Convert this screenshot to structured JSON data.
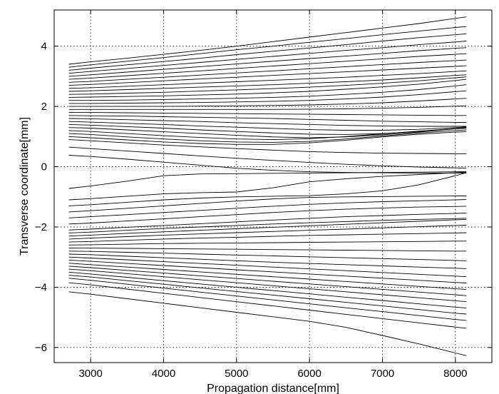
{
  "chart_data": {
    "type": "line",
    "title": "",
    "xlabel": "Propagation distance[mm]",
    "ylabel": "Transverse coordinate[mm]",
    "xlim": [
      2500,
      8500
    ],
    "ylim": [
      -6.5,
      5.2
    ],
    "xticks": [
      3000,
      4000,
      5000,
      6000,
      7000,
      8000
    ],
    "yticks": [
      -6,
      -4,
      -2,
      0,
      2,
      4
    ],
    "xtick_labels": [
      "3000",
      "4000",
      "5000",
      "6000",
      "7000",
      "8000"
    ],
    "ytick_labels": [
      "−6",
      "−4",
      "−2",
      "0",
      "2",
      "4"
    ],
    "grid": true,
    "legend": "none",
    "line_color": "#000000",
    "x": [
      2700,
      3000,
      3500,
      4000,
      4500,
      5000,
      5500,
      6000,
      6500,
      7000,
      7500,
      8000,
      8150
    ],
    "series": [
      {
        "values": [
          3.4,
          3.48,
          3.6,
          3.73,
          3.86,
          4.0,
          4.15,
          4.3,
          4.45,
          4.6,
          4.75,
          4.92,
          4.97
        ]
      },
      {
        "values": [
          3.3,
          3.38,
          3.5,
          3.62,
          3.75,
          3.88,
          4.0,
          4.13,
          4.25,
          4.38,
          4.5,
          4.62,
          4.65
        ]
      },
      {
        "values": [
          3.2,
          3.27,
          3.38,
          3.49,
          3.6,
          3.72,
          3.83,
          3.94,
          4.05,
          4.17,
          4.28,
          4.38,
          4.41
        ]
      },
      {
        "values": [
          3.1,
          3.16,
          3.26,
          3.36,
          3.46,
          3.56,
          3.66,
          3.76,
          3.86,
          3.95,
          4.05,
          4.14,
          4.17
        ]
      },
      {
        "values": [
          3.0,
          3.05,
          3.14,
          3.23,
          3.32,
          3.41,
          3.5,
          3.59,
          3.67,
          3.76,
          3.85,
          3.93,
          3.95
        ]
      },
      {
        "values": [
          2.9,
          2.94,
          3.02,
          3.1,
          3.18,
          3.26,
          3.34,
          3.42,
          3.5,
          3.58,
          3.66,
          3.73,
          3.75
        ]
      },
      {
        "values": [
          2.8,
          2.83,
          2.9,
          2.97,
          3.04,
          3.11,
          3.18,
          3.25,
          3.32,
          3.39,
          3.46,
          3.52,
          3.54
        ]
      },
      {
        "values": [
          2.7,
          2.73,
          2.79,
          2.85,
          2.91,
          2.97,
          3.03,
          3.09,
          3.15,
          3.21,
          3.27,
          3.33,
          3.35
        ]
      },
      {
        "values": [
          2.6,
          2.62,
          2.67,
          2.72,
          2.77,
          2.82,
          2.87,
          2.92,
          2.97,
          3.03,
          3.09,
          3.16,
          3.18
        ]
      },
      {
        "values": [
          2.5,
          2.52,
          2.56,
          2.6,
          2.64,
          2.68,
          2.72,
          2.77,
          2.82,
          2.88,
          2.95,
          3.03,
          3.05
        ]
      },
      {
        "values": [
          2.4,
          2.41,
          2.44,
          2.47,
          2.51,
          2.55,
          2.59,
          2.64,
          2.7,
          2.77,
          2.85,
          2.95,
          2.98
        ]
      },
      {
        "values": [
          2.3,
          2.31,
          2.33,
          2.35,
          2.38,
          2.41,
          2.45,
          2.5,
          2.57,
          2.65,
          2.74,
          2.86,
          2.9
        ]
      },
      {
        "values": [
          2.2,
          2.2,
          2.21,
          2.23,
          2.25,
          2.27,
          2.3,
          2.34,
          2.4,
          2.47,
          2.56,
          2.68,
          2.72
        ]
      },
      {
        "values": [
          2.1,
          2.1,
          2.11,
          2.12,
          2.13,
          2.15,
          2.17,
          2.2,
          2.25,
          2.31,
          2.39,
          2.49,
          2.52
        ]
      },
      {
        "values": [
          2.0,
          2.0,
          2.0,
          2.0,
          2.01,
          2.02,
          2.03,
          2.05,
          2.08,
          2.12,
          2.18,
          2.25,
          2.27
        ]
      },
      {
        "values": [
          1.9,
          1.9,
          1.9,
          1.9,
          1.9,
          1.9,
          1.9,
          1.91,
          1.92,
          1.94,
          1.97,
          2.01,
          2.02
        ]
      },
      {
        "values": [
          1.8,
          1.8,
          1.79,
          1.78,
          1.77,
          1.76,
          1.75,
          1.74,
          1.73,
          1.72,
          1.71,
          1.7,
          1.7
        ]
      },
      {
        "values": [
          1.7,
          1.69,
          1.68,
          1.66,
          1.64,
          1.62,
          1.6,
          1.57,
          1.54,
          1.51,
          1.49,
          1.47,
          1.47
        ]
      },
      {
        "values": [
          1.6,
          1.59,
          1.56,
          1.53,
          1.5,
          1.46,
          1.43,
          1.4,
          1.37,
          1.35,
          1.34,
          1.34,
          1.34
        ]
      },
      {
        "values": [
          1.5,
          1.48,
          1.44,
          1.4,
          1.35,
          1.31,
          1.27,
          1.23,
          1.21,
          1.21,
          1.24,
          1.3,
          1.32
        ]
      },
      {
        "values": [
          1.4,
          1.38,
          1.33,
          1.28,
          1.22,
          1.17,
          1.12,
          1.08,
          1.07,
          1.1,
          1.17,
          1.27,
          1.3
        ]
      },
      {
        "values": [
          1.3,
          1.28,
          1.22,
          1.16,
          1.1,
          1.04,
          0.99,
          0.96,
          0.99,
          1.06,
          1.15,
          1.26,
          1.28
        ]
      },
      {
        "values": [
          1.2,
          1.17,
          1.1,
          1.03,
          0.97,
          0.92,
          0.9,
          0.93,
          1.0,
          1.09,
          1.18,
          1.26,
          1.28
        ]
      },
      {
        "values": [
          1.1,
          1.07,
          0.99,
          0.92,
          0.86,
          0.82,
          0.81,
          0.84,
          0.92,
          1.02,
          1.12,
          1.2,
          1.22
        ]
      },
      {
        "values": [
          1.0,
          0.96,
          0.89,
          0.82,
          0.77,
          0.74,
          0.74,
          0.79,
          0.88,
          0.99,
          1.08,
          1.15,
          1.16
        ]
      },
      {
        "values": [
          0.9,
          0.86,
          0.79,
          0.72,
          0.66,
          0.6,
          0.55,
          0.5,
          0.47,
          0.45,
          0.44,
          0.43,
          0.43
        ]
      },
      {
        "values": [
          0.65,
          0.6,
          0.52,
          0.44,
          0.36,
          0.28,
          0.21,
          0.14,
          0.08,
          0.03,
          -0.01,
          -0.04,
          -0.05
        ]
      },
      {
        "values": [
          0.38,
          0.34,
          0.25,
          0.15,
          0.05,
          -0.05,
          -0.12,
          -0.17,
          -0.19,
          -0.2,
          -0.21,
          -0.21,
          -0.21
        ]
      },
      {
        "values": [
          -0.72,
          -0.64,
          -0.48,
          -0.3,
          -0.24,
          -0.23,
          -0.22,
          -0.21,
          -0.2,
          -0.19,
          -0.18,
          -0.17,
          -0.16
        ]
      },
      {
        "values": [
          -1.1,
          -1.06,
          -0.98,
          -0.9,
          -0.86,
          -0.84,
          -0.7,
          -0.5,
          -0.4,
          -0.32,
          -0.26,
          -0.2,
          -0.18
        ]
      },
      {
        "values": [
          -1.3,
          -1.26,
          -1.18,
          -1.1,
          -1.04,
          -1.0,
          -0.98,
          -0.96,
          -0.9,
          -0.8,
          -0.6,
          -0.3,
          -0.2
        ]
      },
      {
        "values": [
          -1.5,
          -1.46,
          -1.38,
          -1.3,
          -1.22,
          -1.14,
          -1.07,
          -1.02,
          -1.0,
          -0.99,
          -0.98,
          -0.97,
          -0.97
        ]
      },
      {
        "values": [
          -1.7,
          -1.66,
          -1.59,
          -1.52,
          -1.45,
          -1.38,
          -1.31,
          -1.25,
          -1.2,
          -1.16,
          -1.13,
          -1.1,
          -1.09
        ]
      },
      {
        "values": [
          -1.9,
          -1.87,
          -1.8,
          -1.73,
          -1.66,
          -1.59,
          -1.52,
          -1.46,
          -1.41,
          -1.37,
          -1.34,
          -1.32,
          -1.31
        ]
      },
      {
        "values": [
          -2.1,
          -2.07,
          -2.01,
          -1.95,
          -1.89,
          -1.83,
          -1.77,
          -1.71,
          -1.66,
          -1.62,
          -1.58,
          -1.55,
          -1.54
        ]
      },
      {
        "values": [
          -2.2,
          -2.17,
          -2.11,
          -2.05,
          -2.0,
          -1.95,
          -1.9,
          -1.86,
          -1.82,
          -1.78,
          -1.75,
          -1.72,
          -1.71
        ]
      },
      {
        "values": [
          -2.3,
          -2.27,
          -2.21,
          -2.16,
          -2.11,
          -2.06,
          -2.01,
          -1.96,
          -1.91,
          -1.86,
          -1.81,
          -1.76,
          -1.75
        ]
      },
      {
        "values": [
          -2.4,
          -2.37,
          -2.32,
          -2.27,
          -2.23,
          -2.19,
          -2.15,
          -2.11,
          -2.07,
          -2.03,
          -1.99,
          -1.95,
          -1.94
        ]
      },
      {
        "values": [
          -2.5,
          -2.48,
          -2.44,
          -2.4,
          -2.37,
          -2.34,
          -2.31,
          -2.28,
          -2.26,
          -2.24,
          -2.22,
          -2.2,
          -2.19
        ]
      },
      {
        "values": [
          -2.6,
          -2.59,
          -2.57,
          -2.55,
          -2.54,
          -2.53,
          -2.52,
          -2.51,
          -2.5,
          -2.49,
          -2.48,
          -2.47,
          -2.47
        ]
      },
      {
        "values": [
          -2.7,
          -2.7,
          -2.71,
          -2.72,
          -2.73,
          -2.74,
          -2.75,
          -2.76,
          -2.77,
          -2.78,
          -2.79,
          -2.8,
          -2.8
        ]
      },
      {
        "values": [
          -2.8,
          -2.81,
          -2.84,
          -2.87,
          -2.9,
          -2.93,
          -2.96,
          -2.99,
          -3.02,
          -3.05,
          -3.08,
          -3.11,
          -3.12
        ]
      },
      {
        "values": [
          -2.9,
          -2.92,
          -2.97,
          -3.02,
          -3.07,
          -3.12,
          -3.17,
          -3.21,
          -3.25,
          -3.29,
          -3.33,
          -3.37,
          -3.38
        ]
      },
      {
        "values": [
          -3.0,
          -3.03,
          -3.09,
          -3.15,
          -3.21,
          -3.27,
          -3.33,
          -3.39,
          -3.45,
          -3.51,
          -3.57,
          -3.63,
          -3.65
        ]
      },
      {
        "values": [
          -3.1,
          -3.14,
          -3.21,
          -3.28,
          -3.35,
          -3.42,
          -3.49,
          -3.56,
          -3.63,
          -3.7,
          -3.77,
          -3.84,
          -3.86
        ]
      },
      {
        "values": [
          -3.2,
          -3.25,
          -3.33,
          -3.41,
          -3.49,
          -3.57,
          -3.65,
          -3.73,
          -3.81,
          -3.89,
          -3.97,
          -4.05,
          -4.07
        ]
      },
      {
        "values": [
          -3.3,
          -3.35,
          -3.44,
          -3.53,
          -3.62,
          -3.71,
          -3.8,
          -3.89,
          -3.98,
          -4.07,
          -4.16,
          -4.25,
          -4.28
        ]
      },
      {
        "values": [
          -3.4,
          -3.45,
          -3.55,
          -3.65,
          -3.75,
          -3.85,
          -3.95,
          -4.05,
          -4.15,
          -4.25,
          -4.35,
          -4.45,
          -4.48
        ]
      },
      {
        "values": [
          -3.5,
          -3.56,
          -3.67,
          -3.78,
          -3.89,
          -4.0,
          -4.11,
          -4.22,
          -4.33,
          -4.44,
          -4.55,
          -4.66,
          -4.69
        ]
      },
      {
        "values": [
          -3.6,
          -3.66,
          -3.78,
          -3.9,
          -4.02,
          -4.14,
          -4.26,
          -4.38,
          -4.5,
          -4.62,
          -4.74,
          -4.86,
          -4.89
        ]
      },
      {
        "values": [
          -3.7,
          -3.77,
          -3.9,
          -4.03,
          -4.16,
          -4.29,
          -4.42,
          -4.55,
          -4.68,
          -4.81,
          -4.94,
          -5.07,
          -5.1
        ]
      },
      {
        "values": [
          -3.85,
          -3.92,
          -4.06,
          -4.2,
          -4.34,
          -4.48,
          -4.62,
          -4.76,
          -4.9,
          -5.04,
          -5.18,
          -5.32,
          -5.36
        ]
      },
      {
        "values": [
          -4.15,
          -4.23,
          -4.38,
          -4.53,
          -4.68,
          -4.83,
          -4.98,
          -5.13,
          -5.33,
          -5.6,
          -5.88,
          -6.18,
          -6.27
        ]
      }
    ]
  }
}
